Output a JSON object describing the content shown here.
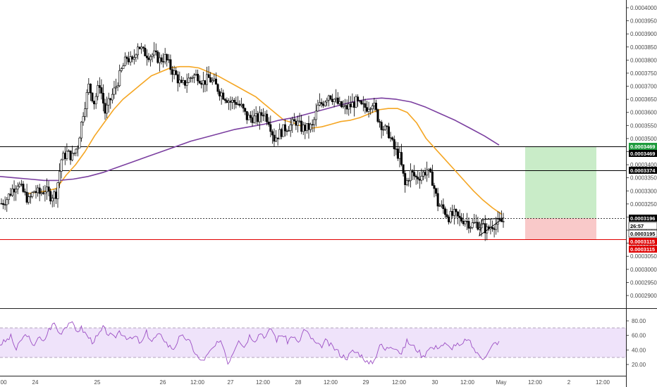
{
  "chart_data": {
    "type": "line",
    "subtype": "candlestick-with-indicators",
    "title": "",
    "price_axis": {
      "ticks": [
        "0.0004000",
        "0.0003950",
        "0.0003900",
        "0.0003850",
        "0.0003800",
        "0.0003750",
        "0.0003700",
        "0.0003650",
        "0.0003600",
        "0.0003550",
        "0.0003500",
        "0.0003450",
        "0.0003400",
        "0.0003350",
        "0.0003300",
        "0.0003250",
        "0.0003200",
        "0.0003150",
        "0.0003100",
        "0.0003050",
        "0.0003000",
        "0.0002950",
        "0.0002900"
      ],
      "range": [
        0.0002875,
        0.000402
      ]
    },
    "time_axis": {
      "labels": [
        ":00",
        "24",
        "25",
        "26",
        "12:00",
        "27",
        "12:00",
        "28",
        "12:00",
        "29",
        "12:00",
        "30",
        "12:00",
        "May",
        "12:00",
        "2",
        "12:00"
      ]
    },
    "rsi_axis": {
      "ticks": [
        "80.00",
        "60.00",
        "40.00",
        "20.00"
      ],
      "range": [
        10,
        95
      ],
      "band_upper": 70,
      "band_lower": 30
    },
    "levels": [
      {
        "name": "take-profit",
        "value": 0.0003469,
        "label": "0.0003469",
        "color": "#1e9b3c"
      },
      {
        "name": "resistance",
        "value": 0.0003469,
        "label": "0.0003469",
        "color": "#000000"
      },
      {
        "name": "support",
        "value": 0.0003374,
        "label": "0.0003374",
        "color": "#000000"
      },
      {
        "name": "last-price",
        "value": 0.0003196,
        "label": "0.0003196",
        "color": "#000000"
      },
      {
        "name": "countdown",
        "value": 0.000318,
        "label": "26:57",
        "color": "#000000"
      },
      {
        "name": "current",
        "value": 0.0003195,
        "label": "0.0003195",
        "color": "#000000"
      },
      {
        "name": "stop-loss-1",
        "value": 0.0003115,
        "label": "0.0003115",
        "color": "#e00000"
      },
      {
        "name": "stop-loss-2",
        "value": 0.0003115,
        "label": "0.0003115",
        "color": "#e00000"
      }
    ],
    "position": {
      "entry": 0.0003196,
      "take_profit": 0.0003469,
      "stop_loss": 0.0003115
    },
    "price_series": [
      0.0003252,
      0.000327,
      0.0003305,
      0.000333,
      0.0003295,
      0.0003262,
      0.00033,
      0.000329,
      0.0003305,
      0.000328,
      0.000329,
      0.000342,
      0.0003445,
      0.000343,
      0.0003475,
      0.00036,
      0.00037,
      0.000364,
      0.000371,
      0.00036,
      0.000365,
      0.00037,
      0.000376,
      0.000381,
      0.000379,
      0.000386,
      0.000383,
      0.000382,
      0.000382,
      0.00038,
      0.000381,
      0.000377,
      0.000374,
      0.00037,
      0.000372,
      0.000374,
      0.000374,
      0.0003715,
      0.000373,
      0.000371,
      0.000368,
      0.000366,
      0.000364,
      0.000364,
      0.000362,
      0.000358,
      0.000358,
      0.0003575,
      0.00036,
      0.000357,
      0.00035,
      0.000352,
      0.000354,
      0.000355,
      0.0003565,
      0.000354,
      0.000354,
      0.0003545,
      0.000362,
      0.000364,
      0.000367,
      0.000365,
      0.0003625,
      0.0003615,
      0.0003625,
      0.000364,
      0.000362,
      0.000362,
      0.000364,
      0.000358,
      0.000354,
      0.000352,
      0.000346,
      0.000343,
      0.000332,
      0.000337,
      0.000335,
      0.000336,
      0.000338,
      0.000334,
      0.000325,
      0.000323,
      0.00032,
      0.000321,
      0.000319,
      0.000319,
      0.000317,
      0.0003175,
      0.0003165,
      0.000315,
      0.000317,
      0.0003175,
      0.0003185
    ],
    "series": [
      {
        "name": "",
        "color": "#f5a623",
        "values": [
          0.000329,
          0.0003295,
          0.00033,
          0.000331,
          0.000336,
          0.00034,
          0.000345,
          0.000351,
          0.000356,
          0.000361,
          0.000365,
          0.000368,
          0.000371,
          0.000374,
          0.0003755,
          0.000377,
          0.0003775,
          0.0003775,
          0.000377,
          0.0003755,
          0.000374,
          0.000372,
          0.00037,
          0.000368,
          0.000366,
          0.000363,
          0.00036,
          0.000357,
          0.000356,
          0.0003545,
          0.000354,
          0.0003545,
          0.0003555,
          0.0003565,
          0.000357,
          0.000358,
          0.0003595,
          0.000361,
          0.0003615,
          0.0003615,
          0.00036,
          0.000356,
          0.00035,
          0.000346,
          0.000342,
          0.000338,
          0.000334,
          0.00033,
          0.0003265,
          0.0003235,
          0.000321
        ]
      },
      {
        "name": "",
        "color": "#7b3fa0",
        "values": [
          0.0003355,
          0.000335,
          0.0003345,
          0.000334,
          0.000334,
          0.0003345,
          0.0003355,
          0.000337,
          0.000339,
          0.000341,
          0.000343,
          0.000345,
          0.000347,
          0.000349,
          0.0003505,
          0.000352,
          0.0003535,
          0.0003545,
          0.0003555,
          0.000357,
          0.000358,
          0.0003595,
          0.000361,
          0.0003625,
          0.000364,
          0.000365,
          0.0003655,
          0.000365,
          0.000364,
          0.000362,
          0.0003595,
          0.000357,
          0.000354,
          0.000351,
          0.0003475
        ]
      }
    ],
    "rsi_series": [
      48,
      52,
      58,
      40,
      55,
      62,
      44,
      58,
      50,
      68,
      77,
      62,
      72,
      80,
      66,
      70,
      60,
      52,
      58,
      70,
      62,
      56,
      66,
      60,
      54,
      58,
      48,
      64,
      52,
      60,
      58,
      46,
      42,
      56,
      58,
      50,
      36,
      24,
      30,
      40,
      48,
      50,
      22,
      38,
      56,
      44,
      60,
      54,
      64,
      58,
      70,
      54,
      62,
      52,
      60,
      48,
      68,
      60,
      50,
      44,
      52,
      46,
      40,
      32,
      30,
      38,
      36,
      30,
      20,
      26,
      48,
      40,
      46,
      44,
      34,
      52,
      46,
      40,
      30,
      44,
      42,
      46,
      48,
      42,
      48,
      44,
      56,
      46,
      34,
      30,
      36,
      48,
      52
    ]
  }
}
